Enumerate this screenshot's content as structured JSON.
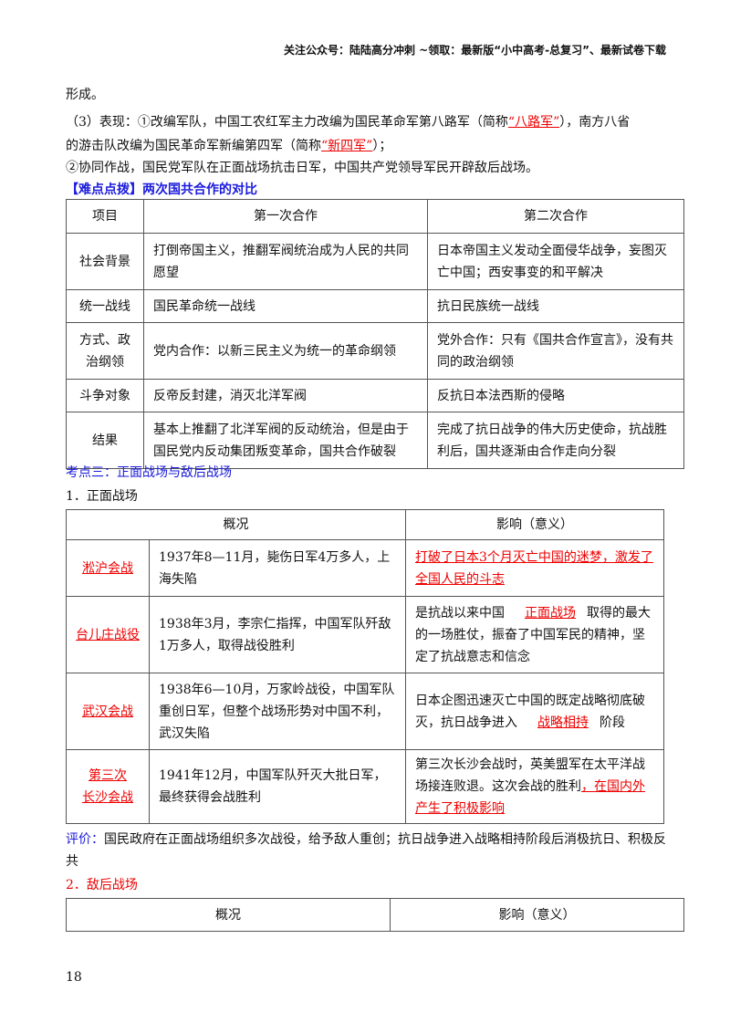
{
  "header": "关注公众号：陆陆高分冲刺  ~领取：最新版“小中高考-总复习”、最新试卷下载",
  "lines": {
    "l1": "形成。",
    "l2a": "（3）表现：①改编军队，中国工农红军主力改编为国民革命军第八路军（简称",
    "l2b": "“八路军”",
    "l2c": "），南方八省",
    "l3a": "的游击队改编为国民革命军新编第四军（简称",
    "l3b": "“新四军”",
    "l3c": "）；",
    "l4": "②协同作战，国民党军队在正面战场抗击日军，中国共产党领导军民开辟敌后战场。",
    "l5": "【难点点拨】两次国共合作的对比"
  },
  "compare": {
    "headers": [
      "项目",
      "第一次合作",
      "第二次合作"
    ],
    "rows": [
      {
        "item": "社会背景",
        "first": "打倒帝国主义，推翻军阀统治成为人民的共同愿望",
        "second": "日本帝国主义发动全面侵华战争，妄图灭亡中国；西安事变的和平解决"
      },
      {
        "item": "统一战线",
        "first": "国民革命统一战线",
        "second": "抗日民族统一战线"
      },
      {
        "item": "方式、政治纲领",
        "first": "党内合作：以新三民主义为统一的革命纲领",
        "second": "党外合作：只有《国共合作宣言》，没有共同的政治纲领"
      },
      {
        "item": "斗争对象",
        "first": "反帝反封建，消灭北洋军阀",
        "second": "反抗日本法西斯的侵略"
      },
      {
        "item": "结果",
        "first": "基本上推翻了北洋军阀的反动统治，但是由于国民党内反动集团叛变革命，国共合作破裂",
        "second": "完成了抗日战争的伟大历史使命，抗战胜利后，国共逐渐由合作走向分裂"
      }
    ]
  },
  "section3": "考点三：正面战场与敌后战场",
  "sub1": "1．正面战场",
  "front": {
    "headers": [
      "概况",
      "影响（意义）"
    ],
    "rows": [
      {
        "name": "淞沪会战",
        "desc": "1937年8—11月，毙伤日军4万多人，上海失陷",
        "effect": "打破了日本3个月灭亡中国的迷梦，激发了全国人民的斗志"
      },
      {
        "name": "台儿庄战役",
        "desc": "1938年3月，李宗仁指挥，中国军队歼敌1万多人，取得战役胜利",
        "effect_a": "是抗战以来中国",
        "effect_b": "正面战场",
        "effect_c": "取得的最大的一场胜仗，振奋了中国军民的精神，坚定了抗战意志和信念"
      },
      {
        "name": "武汉会战",
        "desc": "1938年6—10月，万家岭战役，中国军队重创日军，但整个战场形势对中国不利，武汉失陷",
        "effect_a": "日本企图迅速灭亡中国的既定战略彻底破灭，抗日战争进入",
        "effect_b": "战略相持",
        "effect_c": "阶段"
      },
      {
        "name_a": "第三次",
        "name_b": "长沙会战",
        "desc": "1941年12月，中国军队歼灭大批日军，最终获得会战胜利",
        "effect_a": "第三次长沙会战时，英美盟军在太平洋战场接连败退。这次会战的胜利",
        "effect_b": "，在国内外产生了积极影响"
      }
    ]
  },
  "evaluation_label": "评价：",
  "evaluation_text": "国民政府在正面战场组织多次战役，给予敌人重创；抗日战争进入战略相持阶段后消极抗日、积极反共",
  "sub2": "2．敌后战场",
  "behind": {
    "headers": [
      "概况",
      "影响（意义）"
    ]
  },
  "page_number": "18"
}
